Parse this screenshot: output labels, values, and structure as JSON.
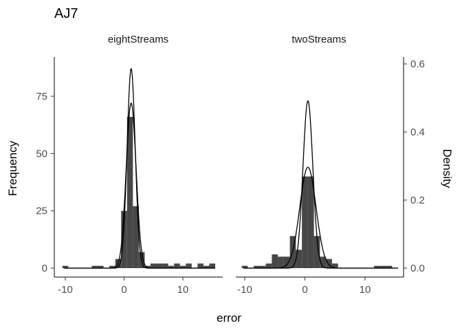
{
  "chart_data": {
    "type": "histogram",
    "title": "AJ7",
    "xlabel": "error",
    "ylabel_left": "Frequency",
    "ylabel_right": "Density",
    "xlim": [
      -12,
      16
    ],
    "ylim_left": [
      0,
      90
    ],
    "ylim_right": [
      0,
      0.6
    ],
    "x_ticks": [
      -10,
      0,
      10
    ],
    "y_ticks_left": [
      0,
      25,
      50,
      75
    ],
    "y_ticks_right": [
      0.0,
      0.2,
      0.4,
      0.6
    ],
    "y_tick_labels_right": [
      "0.0",
      "0.2",
      "0.4",
      "0.6"
    ],
    "bin_width": 1,
    "grid": false,
    "panels": [
      {
        "name": "eightStreams",
        "bins": [
          {
            "x": -10,
            "count": 1
          },
          {
            "x": -5,
            "count": 1
          },
          {
            "x": -4,
            "count": 1
          },
          {
            "x": -2,
            "count": 1
          },
          {
            "x": -1,
            "count": 4
          },
          {
            "x": 0,
            "count": 25
          },
          {
            "x": 1,
            "count": 66
          },
          {
            "x": 2,
            "count": 27
          },
          {
            "x": 3,
            "count": 7
          },
          {
            "x": 4,
            "count": 1
          },
          {
            "x": 5,
            "count": 2
          },
          {
            "x": 6,
            "count": 2
          },
          {
            "x": 7,
            "count": 2
          },
          {
            "x": 8,
            "count": 1
          },
          {
            "x": 9,
            "count": 2
          },
          {
            "x": 10,
            "count": 1
          },
          {
            "x": 11,
            "count": 2
          },
          {
            "x": 13,
            "count": 2
          },
          {
            "x": 14,
            "count": 1
          },
          {
            "x": 15,
            "count": 2
          }
        ],
        "curves": [
          {
            "mean": 1.2,
            "sd": 0.69,
            "peak": 87
          },
          {
            "mean": 1.2,
            "sd": 0.84,
            "peak": 72
          }
        ]
      },
      {
        "name": "twoStreams",
        "bins": [
          {
            "x": -10,
            "count": 1
          },
          {
            "x": -8,
            "count": 1
          },
          {
            "x": -7,
            "count": 1
          },
          {
            "x": -6,
            "count": 2
          },
          {
            "x": -5,
            "count": 6
          },
          {
            "x": -4,
            "count": 5
          },
          {
            "x": -3,
            "count": 5
          },
          {
            "x": -2,
            "count": 14
          },
          {
            "x": -1,
            "count": 8
          },
          {
            "x": 0,
            "count": 40
          },
          {
            "x": 1,
            "count": 40
          },
          {
            "x": 2,
            "count": 14
          },
          {
            "x": 3,
            "count": 5
          },
          {
            "x": 4,
            "count": 4
          },
          {
            "x": 5,
            "count": 2
          },
          {
            "x": 12,
            "count": 1
          },
          {
            "x": 13,
            "count": 1
          },
          {
            "x": 14,
            "count": 1
          }
        ],
        "curves": [
          {
            "mean": 0.5,
            "sd": 0.82,
            "peak": 73
          },
          {
            "mean": 0.5,
            "sd": 1.35,
            "peak": 44
          }
        ]
      }
    ]
  }
}
